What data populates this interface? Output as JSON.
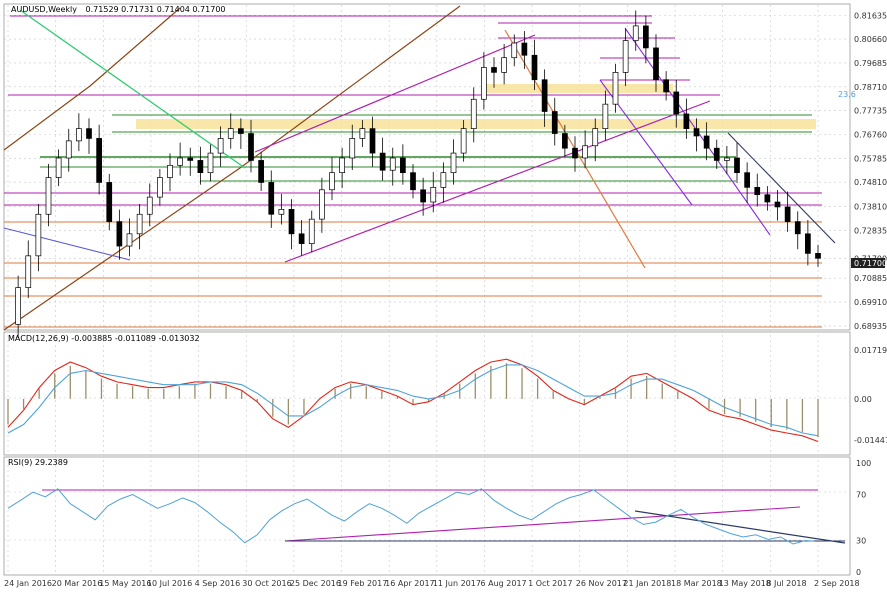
{
  "chart_data": [
    {
      "type": "candlestick",
      "title": "AUDUSD,Weekly",
      "ohlc_header": "0.71529 0.71731 0.71404 0.71700",
      "y_ticks": [
        "0.81635",
        "0.80660",
        "0.79685",
        "0.78710",
        "0.77735",
        "0.76760",
        "0.75785",
        "0.74810",
        "0.73810",
        "0.72835",
        "0.71700",
        "0.70885",
        "0.69910",
        "0.68935"
      ],
      "current_price": "0.71700",
      "fib_level_label": "23.6",
      "ylim": [
        0.6885,
        0.8185
      ],
      "x_labels": [
        "24 Jan 2016",
        "20 Mar 2016",
        "15 May 2016",
        "10 Jul 2016",
        "4 Sep 2016",
        "30 Oct 2016",
        "25 Dec 2016",
        "19 Feb 2017",
        "16 Apr 2017",
        "11 Jun 2017",
        "6 Aug 2017",
        "1 Oct 2017",
        "26 Nov 2017",
        "21 Jan 2018",
        "18 Mar 2018",
        "13 May 2018",
        "8 Jul 2018",
        "2 Sep 2018"
      ],
      "close_path": [
        0.69,
        0.705,
        0.718,
        0.735,
        0.75,
        0.758,
        0.765,
        0.77,
        0.766,
        0.748,
        0.732,
        0.722,
        0.727,
        0.735,
        0.742,
        0.75,
        0.755,
        0.758,
        0.757,
        0.752,
        0.76,
        0.766,
        0.77,
        0.768,
        0.757,
        0.748,
        0.735,
        0.737,
        0.727,
        0.723,
        0.733,
        0.745,
        0.752,
        0.758,
        0.766,
        0.77,
        0.76,
        0.753,
        0.758,
        0.752,
        0.745,
        0.74,
        0.746,
        0.752,
        0.76,
        0.77,
        0.782,
        0.795,
        0.793,
        0.799,
        0.805,
        0.8,
        0.79,
        0.777,
        0.768,
        0.762,
        0.758,
        0.763,
        0.77,
        0.78,
        0.793,
        0.806,
        0.812,
        0.803,
        0.79,
        0.785,
        0.776,
        0.77,
        0.767,
        0.762,
        0.757,
        0.758,
        0.752,
        0.746,
        0.743,
        0.74,
        0.738,
        0.732,
        0.727,
        0.719,
        0.717
      ]
    },
    {
      "type": "line",
      "title": "MACD(12,26,9) -0.003885 -0.011089 -0.013032",
      "y_ticks": [
        "0.017191",
        "0.00",
        "-0.014471"
      ],
      "ylim": [
        -0.018,
        0.019
      ],
      "series": [
        {
          "name": "",
          "color": "#e0261a",
          "values": [
            -0.01,
            -0.004,
            0.004,
            0.01,
            0.013,
            0.011,
            0.008,
            0.006,
            0.005,
            0.004,
            0.004,
            0.005,
            0.006,
            0.006,
            0.005,
            0.003,
            -0.001,
            -0.007,
            -0.01,
            -0.006,
            0.0,
            0.004,
            0.006,
            0.005,
            0.003,
            0.001,
            -0.002,
            -0.001,
            0.002,
            0.006,
            0.01,
            0.013,
            0.014,
            0.012,
            0.008,
            0.003,
            0.0,
            -0.002,
            0.001,
            0.004,
            0.008,
            0.009,
            0.006,
            0.003,
            0.0,
            -0.004,
            -0.006,
            -0.007,
            -0.009,
            -0.011,
            -0.012,
            -0.013,
            -0.015
          ]
        },
        {
          "name": "",
          "color": "#4fa3d8",
          "values": [
            -0.012,
            -0.009,
            -0.003,
            0.004,
            0.009,
            0.01,
            0.009,
            0.008,
            0.007,
            0.006,
            0.005,
            0.005,
            0.005,
            0.006,
            0.006,
            0.005,
            0.002,
            -0.002,
            -0.006,
            -0.006,
            -0.003,
            0.001,
            0.004,
            0.005,
            0.004,
            0.003,
            0.001,
            0.0,
            0.001,
            0.003,
            0.007,
            0.01,
            0.012,
            0.012,
            0.01,
            0.007,
            0.004,
            0.001,
            0.001,
            0.002,
            0.005,
            0.007,
            0.007,
            0.005,
            0.003,
            0.0,
            -0.003,
            -0.005,
            -0.007,
            -0.009,
            -0.01,
            -0.012,
            -0.013
          ]
        }
      ]
    },
    {
      "type": "line",
      "title": "RSI(9) 29.2389",
      "y_ticks": [
        "100",
        "70",
        "30",
        "0"
      ],
      "ylim": [
        0,
        100
      ],
      "series": [
        {
          "name": "",
          "color": "#4fa3d8",
          "values": [
            58,
            65,
            72,
            68,
            75,
            62,
            55,
            48,
            60,
            66,
            70,
            64,
            58,
            62,
            67,
            63,
            55,
            46,
            38,
            28,
            35,
            48,
            56,
            62,
            66,
            59,
            52,
            47,
            55,
            62,
            58,
            52,
            45,
            54,
            60,
            66,
            72,
            70,
            75,
            65,
            58,
            52,
            48,
            55,
            62,
            67,
            70,
            74,
            66,
            58,
            50,
            44,
            46,
            52,
            57,
            50,
            44,
            40,
            36,
            33,
            35,
            31,
            33,
            27,
            30,
            29
          ]
        }
      ]
    }
  ]
}
